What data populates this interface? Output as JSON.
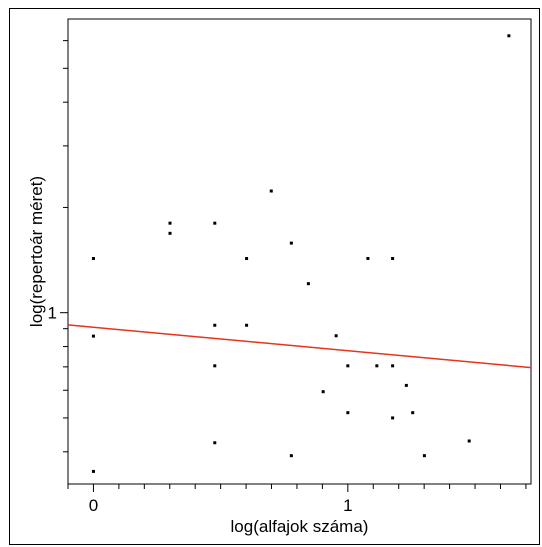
{
  "chart_data": {
    "type": "scatter",
    "xlabel": "log(alfajok száma)",
    "ylabel": "log(repertoár méret)",
    "x_ticks": [
      {
        "value": 0,
        "label": "0"
      },
      {
        "value": 1,
        "label": "1"
      }
    ],
    "y_ticks": [
      {
        "value": 1,
        "label": "1"
      }
    ],
    "xlim": [
      -0.1,
      1.72
    ],
    "ylim": [
      0.51,
      1.84
    ],
    "grid": false,
    "points": [
      {
        "x": 0.0,
        "y": 1.155
      },
      {
        "x": 0.0,
        "y": 0.933
      },
      {
        "x": 0.0,
        "y": 0.546
      },
      {
        "x": 0.301,
        "y": 1.256
      },
      {
        "x": 0.301,
        "y": 1.227
      },
      {
        "x": 0.477,
        "y": 1.256
      },
      {
        "x": 0.477,
        "y": 0.964
      },
      {
        "x": 0.477,
        "y": 0.848
      },
      {
        "x": 0.477,
        "y": 0.628
      },
      {
        "x": 0.602,
        "y": 1.155
      },
      {
        "x": 0.602,
        "y": 0.964
      },
      {
        "x": 0.699,
        "y": 1.348
      },
      {
        "x": 0.778,
        "y": 1.199
      },
      {
        "x": 0.778,
        "y": 0.591
      },
      {
        "x": 0.845,
        "y": 1.083
      },
      {
        "x": 0.903,
        "y": 0.774
      },
      {
        "x": 0.954,
        "y": 0.934
      },
      {
        "x": 1.0,
        "y": 0.848
      },
      {
        "x": 1.0,
        "y": 0.714
      },
      {
        "x": 1.079,
        "y": 1.155
      },
      {
        "x": 1.114,
        "y": 0.848
      },
      {
        "x": 1.176,
        "y": 1.155
      },
      {
        "x": 1.176,
        "y": 0.848
      },
      {
        "x": 1.176,
        "y": 0.699
      },
      {
        "x": 1.23,
        "y": 0.792
      },
      {
        "x": 1.255,
        "y": 0.714
      },
      {
        "x": 1.301,
        "y": 0.591
      },
      {
        "x": 1.477,
        "y": 0.633
      },
      {
        "x": 1.633,
        "y": 1.792
      }
    ],
    "trendline": {
      "color": "#e8341c",
      "x": [
        -0.1,
        1.72
      ],
      "y": [
        0.965,
        0.843
      ]
    }
  }
}
